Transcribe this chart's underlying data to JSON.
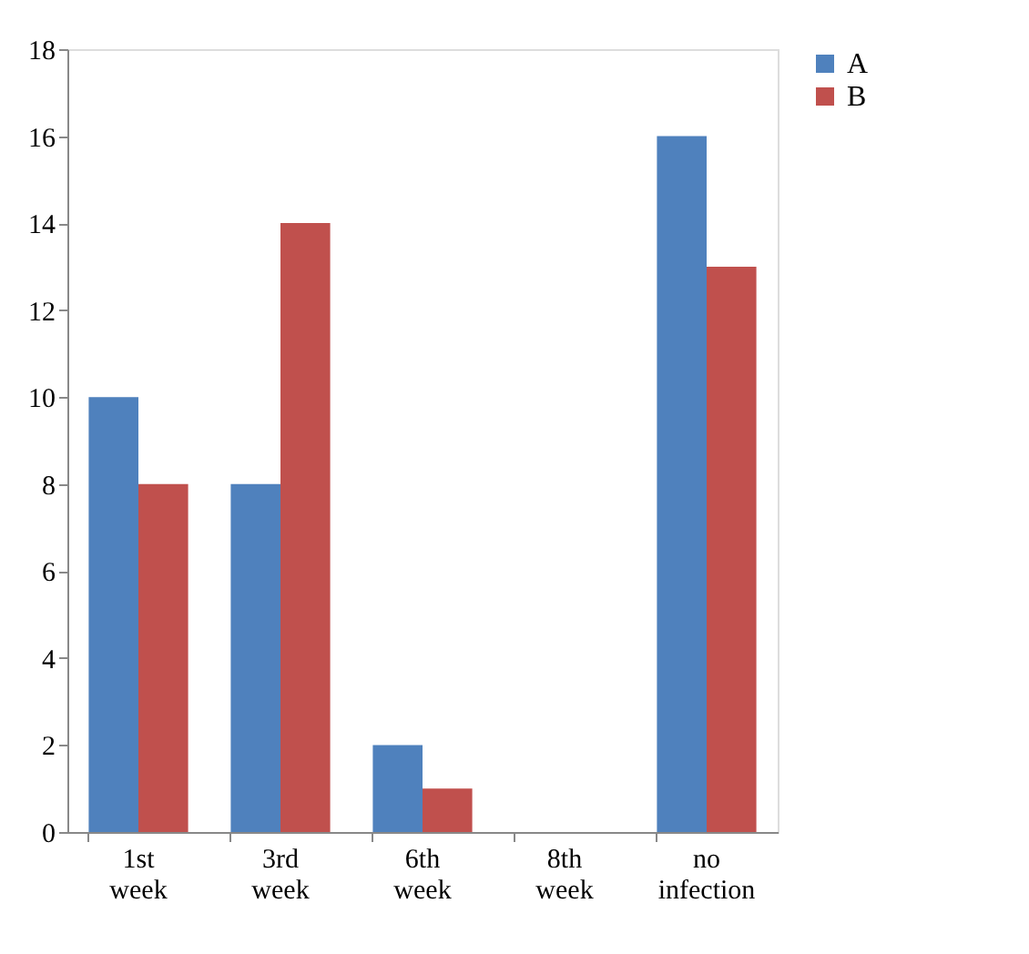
{
  "chart_data": {
    "type": "bar",
    "categories": [
      "1st week",
      "3rd week",
      "6th week",
      "8th week",
      "no infection"
    ],
    "series": [
      {
        "name": "A",
        "color": "#4f81bd",
        "values": [
          10,
          8,
          2,
          0,
          16
        ]
      },
      {
        "name": "B",
        "color": "#c0504d",
        "values": [
          8,
          14,
          1,
          0,
          13
        ]
      }
    ],
    "ylim": [
      0,
      18
    ],
    "yticks": [
      0,
      2,
      4,
      6,
      8,
      10,
      12,
      14,
      16,
      18
    ],
    "grid": false,
    "legend": "right"
  }
}
